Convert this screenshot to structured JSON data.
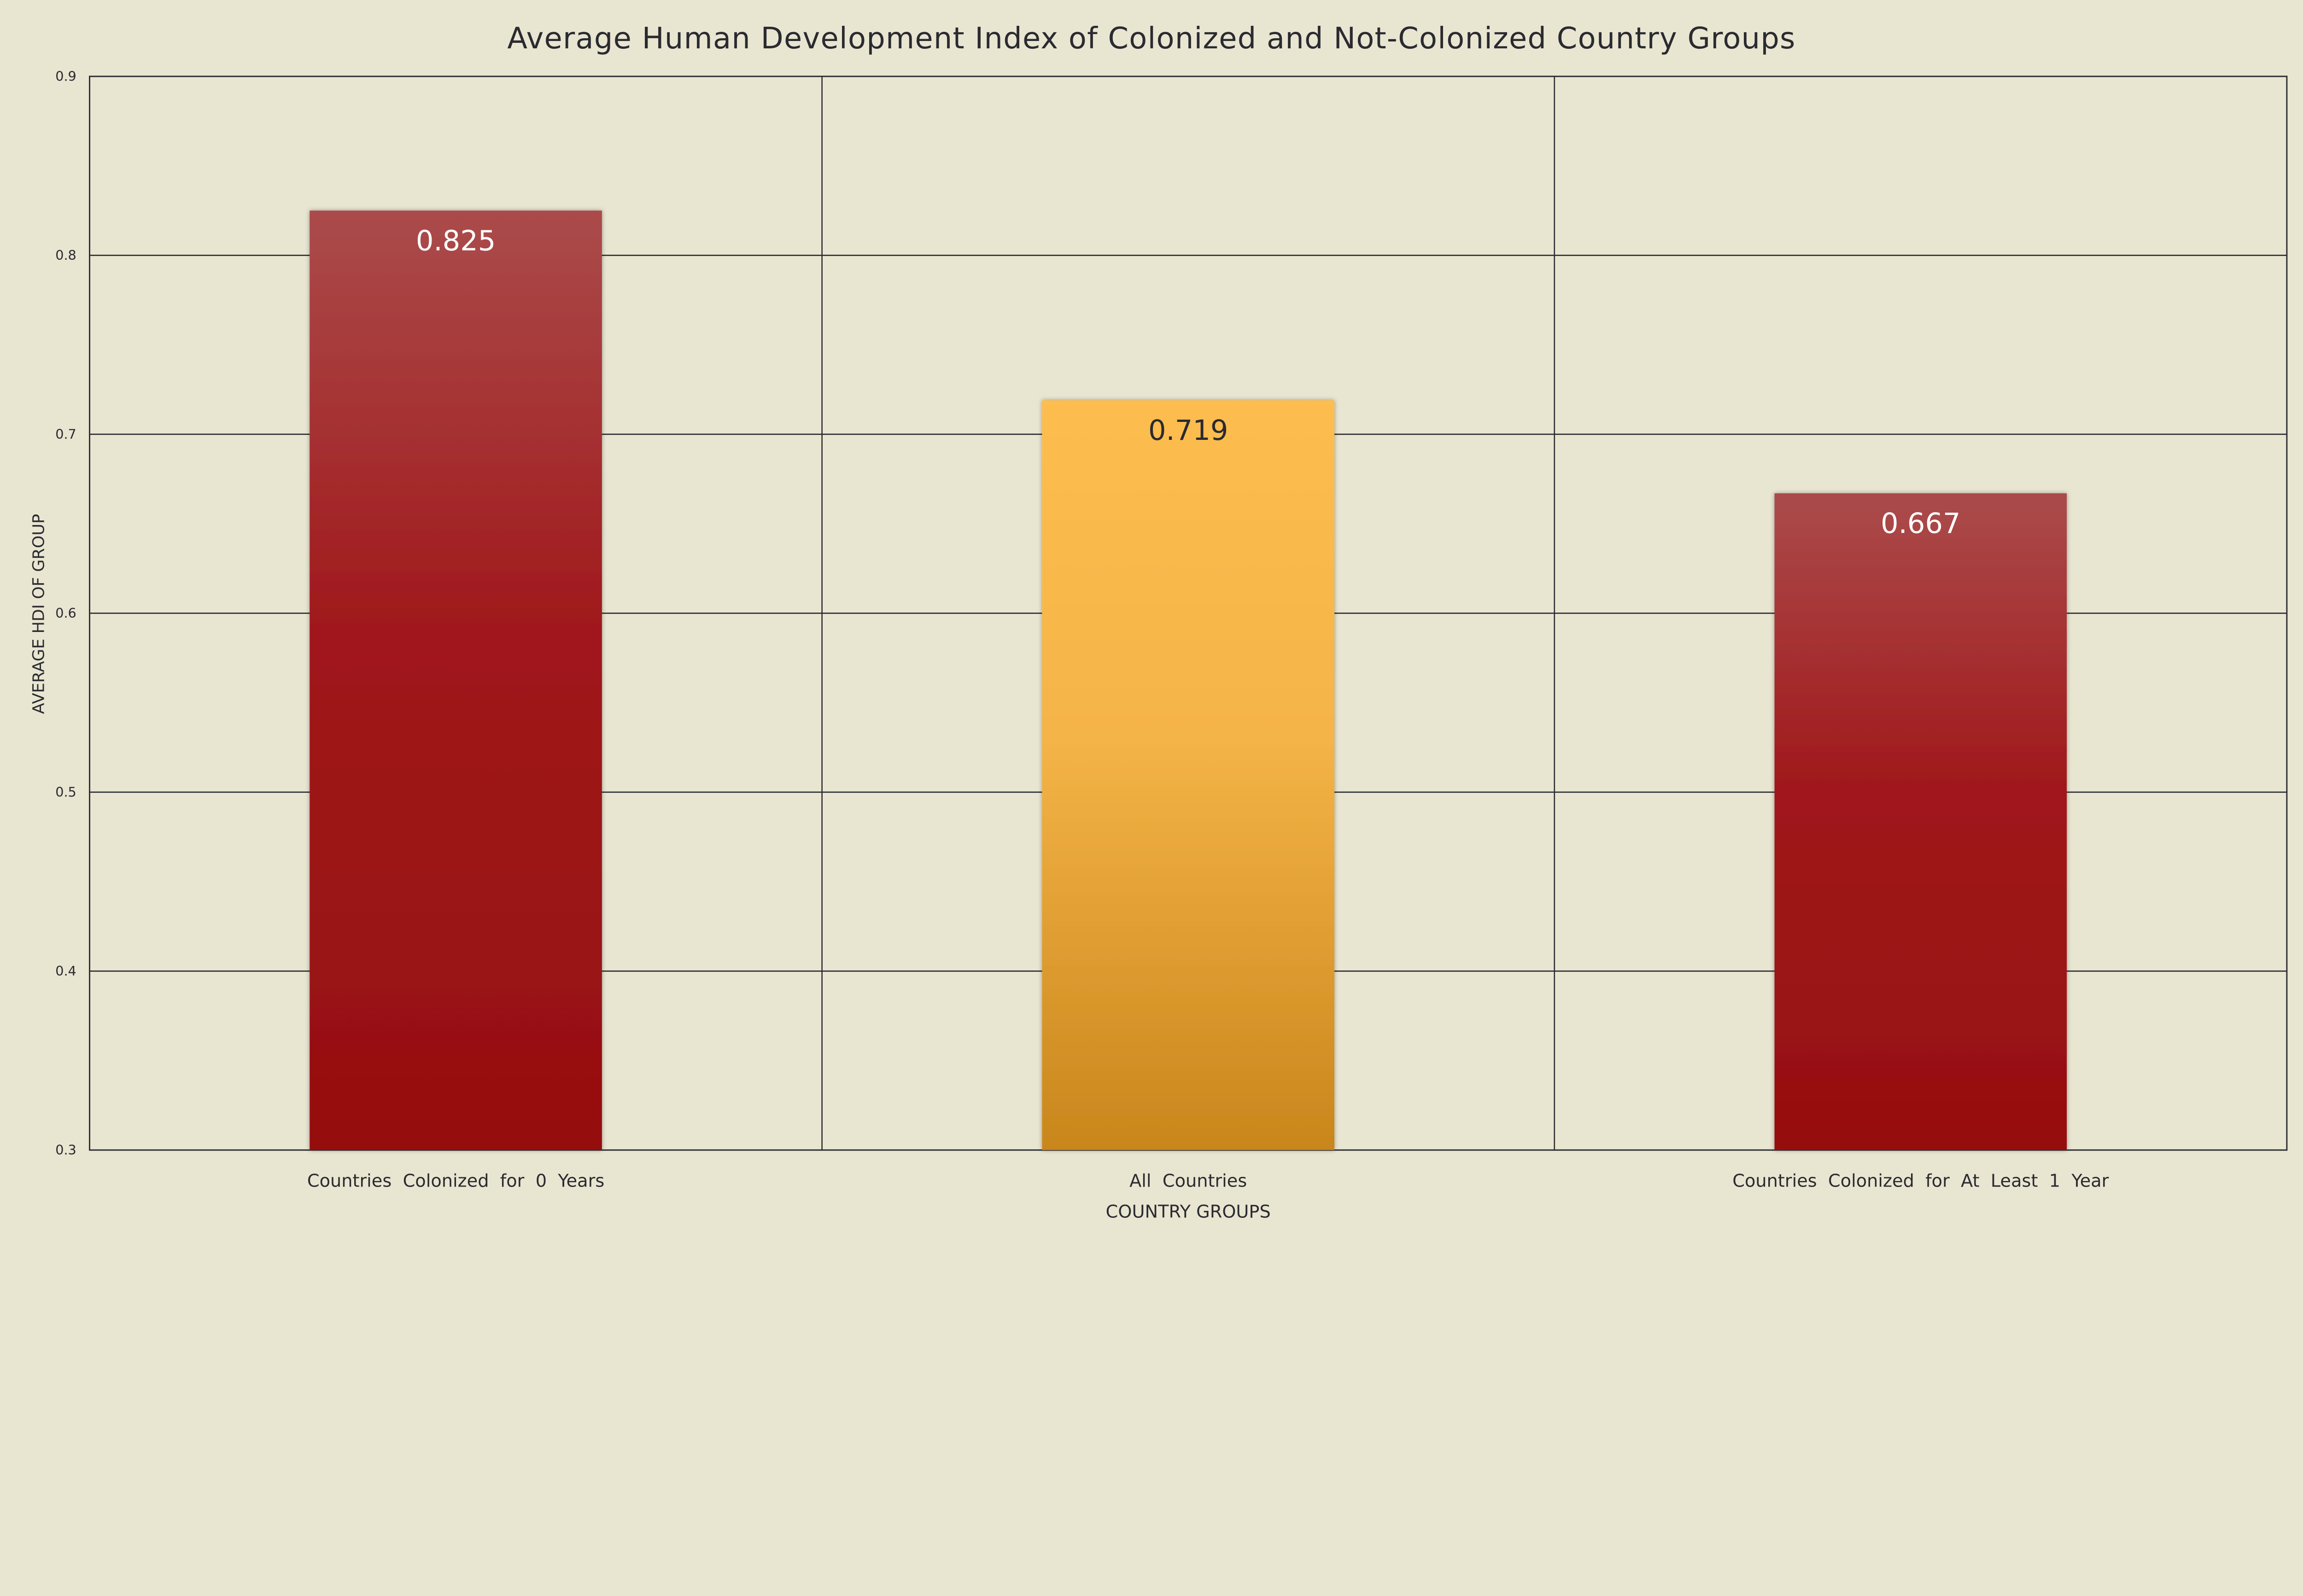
{
  "chart_data": {
    "type": "bar",
    "title": "Average Human Development Index of Colonized and Not-Colonized Country Groups",
    "xlabel": "COUNTRY GROUPS",
    "ylabel": "AVERAGE HDI OF GROUP",
    "categories": [
      "Countries  Colonized  for  0  Years",
      "All  Countries",
      "Countries  Colonized  for  At  Least  1  Year"
    ],
    "values": [
      0.825,
      0.719,
      0.667
    ],
    "value_labels": [
      "0.825",
      "0.719",
      "0.667"
    ],
    "ylim": [
      0.3,
      0.9
    ],
    "yticks": [
      "0.3",
      "0.4",
      "0.5",
      "0.6",
      "0.7",
      "0.8",
      "0.9"
    ],
    "grid": true,
    "colors": {
      "background": "#e8e5d1",
      "red_top": "#ab4b4b",
      "red_bottom": "#960f0f",
      "orange_top": "#fdbd4f",
      "orange_bottom": "#c9861c"
    },
    "bar_colors": [
      "red",
      "orange",
      "red"
    ],
    "label_colors": [
      "#ffffff",
      "#2a2a30",
      "#ffffff"
    ]
  }
}
